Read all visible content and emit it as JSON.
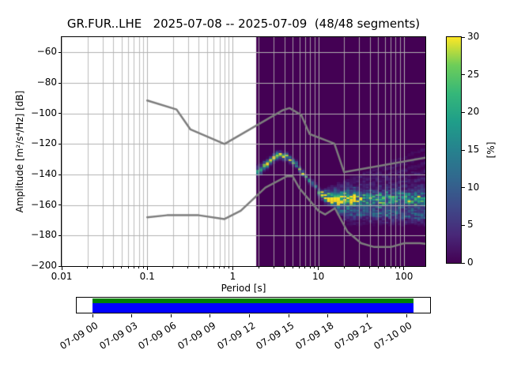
{
  "title": "GR.FUR..LHE   2025-07-08 -- 2025-07-09  (48/48 segments)",
  "axes": {
    "xlabel": "Period [s]",
    "ylabel": "Amplitude [m²/s⁴/Hz] [dB]",
    "x_tick_labels": [
      "0.01",
      "0.1",
      "1",
      "10",
      "100"
    ],
    "x_tick_values": [
      0.01,
      0.1,
      1,
      10,
      100
    ],
    "y_tick_labels": [
      "−60",
      "−80",
      "−100",
      "−120",
      "−140",
      "−160",
      "−180",
      "−200"
    ],
    "y_tick_values": [
      -60,
      -80,
      -100,
      -120,
      -140,
      -160,
      -180,
      -200
    ],
    "xlim": [
      0.01,
      178
    ],
    "ylim": [
      -200,
      -50
    ],
    "x_scale": "log",
    "grid_color": "#b0b0b0"
  },
  "colorbar": {
    "label": "[%]",
    "tick_labels": [
      "0",
      "5",
      "10",
      "15",
      "20",
      "25",
      "30"
    ],
    "tick_values": [
      0,
      5,
      10,
      15,
      20,
      25,
      30
    ],
    "min": 0,
    "max": 30,
    "colormap": "viridis",
    "stops": [
      "#440154",
      "#482878",
      "#3e4a89",
      "#31688e",
      "#26828e",
      "#1f9e89",
      "#35b779",
      "#6dcd59",
      "#fde725"
    ]
  },
  "timeline": {
    "tick_labels": [
      "07-09 00",
      "07-09 03",
      "07-09 06",
      "07-09 09",
      "07-09 12",
      "07-09 15",
      "07-09 18",
      "07-09 21",
      "07-10 00"
    ],
    "used_color": "#008000",
    "coverage_color": "#0000ff"
  },
  "chart_data": {
    "type": "heatmap",
    "title": "GR.FUR..LHE 2025-07-08 -- 2025-07-09 (48/48 segments)",
    "xlabel": "Period [s]",
    "ylabel": "Amplitude [m²/s⁴/Hz] [dB]",
    "x_scale": "log",
    "xlim": [
      0.01,
      178
    ],
    "ylim": [
      -200,
      -50
    ],
    "clim": [
      0,
      30
    ],
    "background_color": "#440154",
    "data_period_range": [
      1.88,
      178
    ],
    "period_step_octaves": 0.125,
    "db_bin_width": 1,
    "mode_curve": {
      "periods": [
        1.9,
        2.1,
        2.4,
        2.7,
        3.1,
        3.6,
        4.2,
        4.9,
        5.7,
        6.6,
        7.6,
        8.8,
        10.2,
        11.8,
        13.7,
        16.0
      ],
      "db": [
        -138.5,
        -137,
        -134,
        -131,
        -128.5,
        -127.5,
        -128.5,
        -131,
        -134.5,
        -139,
        -143,
        -147,
        -150.5,
        -153.5,
        -155.5,
        -157
      ],
      "percent": [
        15,
        17,
        20,
        23,
        27,
        28,
        26,
        24,
        22,
        20,
        18,
        15,
        12,
        10,
        8,
        6
      ],
      "sigma": [
        1.8,
        1.8,
        1.7,
        1.5,
        1.4,
        1.4,
        1.3,
        1.3,
        1.2,
        1.1,
        1.1,
        1.1,
        1.1,
        1.2,
        1.3,
        1.5
      ]
    },
    "fan_lines": [
      {
        "p0": 11,
        "db0": -151.0,
        "p1": 178,
        "db1": -123.0,
        "percent": 1.8,
        "sigma": 0.8
      },
      {
        "p0": 11,
        "db0": -151.5,
        "p1": 178,
        "db1": -128.0,
        "percent": 2.2,
        "sigma": 0.8
      },
      {
        "p0": 11,
        "db0": -152.0,
        "p1": 178,
        "db1": -133.0,
        "percent": 2.6,
        "sigma": 0.9
      },
      {
        "p0": 11,
        "db0": -152.5,
        "p1": 178,
        "db1": -138.0,
        "percent": 3.0,
        "sigma": 0.9
      },
      {
        "p0": 10,
        "db0": -153.0,
        "p1": 178,
        "db1": -143.0,
        "percent": 3.5,
        "sigma": 1.0
      },
      {
        "p0": 10,
        "db0": -153.0,
        "p1": 178,
        "db1": -147.0,
        "percent": 4.5,
        "sigma": 1.0
      },
      {
        "p0": 10,
        "db0": -154.0,
        "p1": 178,
        "db1": -150.5,
        "percent": 6.0,
        "sigma": 1.1
      },
      {
        "p0": 11,
        "db0": -155.0,
        "p1": 178,
        "db1": -153.0,
        "percent": 11.0,
        "sigma": 1.3
      },
      {
        "p0": 12,
        "db0": -156.5,
        "p1": 178,
        "db1": -156.0,
        "percent": 14.0,
        "sigma": 1.5
      },
      {
        "p0": 13,
        "db0": -158.0,
        "p1": 178,
        "db1": -159.0,
        "percent": 11.0,
        "sigma": 1.3
      },
      {
        "p0": 14,
        "db0": -160.0,
        "p1": 178,
        "db1": -161.5,
        "percent": 7.0,
        "sigma": 1.1
      },
      {
        "p0": 16,
        "db0": -162.0,
        "p1": 178,
        "db1": -164.0,
        "percent": 7.0,
        "sigma": 1.1
      },
      {
        "p0": 17,
        "db0": -164.0,
        "p1": 178,
        "db1": -166.5,
        "percent": 9.0,
        "sigma": 1.2
      },
      {
        "p0": 19,
        "db0": -166.5,
        "p1": 178,
        "db1": -168.5,
        "percent": 6.0,
        "sigma": 1.0
      },
      {
        "p0": 20,
        "db0": -169.0,
        "p1": 178,
        "db1": -170.5,
        "percent": 3.0,
        "sigma": 0.9
      },
      {
        "p0": 22,
        "db0": -172.0,
        "p1": 178,
        "db1": -172.5,
        "percent": 1.8,
        "sigma": 0.8
      }
    ],
    "noise_models": {
      "color": "#7d7d7d",
      "nhnm": [
        [
          0.1,
          -91.5
        ],
        [
          0.22,
          -97.4
        ],
        [
          0.32,
          -110.5
        ],
        [
          0.8,
          -120.0
        ],
        [
          3.8,
          -98.0
        ],
        [
          4.6,
          -96.5
        ],
        [
          6.3,
          -101.0
        ],
        [
          7.9,
          -113.5
        ],
        [
          15.4,
          -119.8
        ],
        [
          20,
          -138.5
        ],
        [
          178,
          -129.0
        ]
      ],
      "nlnm": [
        [
          0.1,
          -168.0
        ],
        [
          0.17,
          -166.7
        ],
        [
          0.4,
          -166.7
        ],
        [
          0.8,
          -169.2
        ],
        [
          1.24,
          -163.7
        ],
        [
          2.4,
          -148.6
        ],
        [
          4.3,
          -141.1
        ],
        [
          5.0,
          -141.1
        ],
        [
          6.0,
          -149.0
        ],
        [
          10,
          -163.7
        ],
        [
          12,
          -166.2
        ],
        [
          15.6,
          -162.1
        ],
        [
          21.9,
          -177.5
        ],
        [
          31.6,
          -185.0
        ],
        [
          45,
          -187.5
        ],
        [
          70,
          -187.5
        ],
        [
          101,
          -185.0
        ],
        [
          154,
          -185.0
        ],
        [
          178,
          -185.4
        ]
      ]
    }
  }
}
